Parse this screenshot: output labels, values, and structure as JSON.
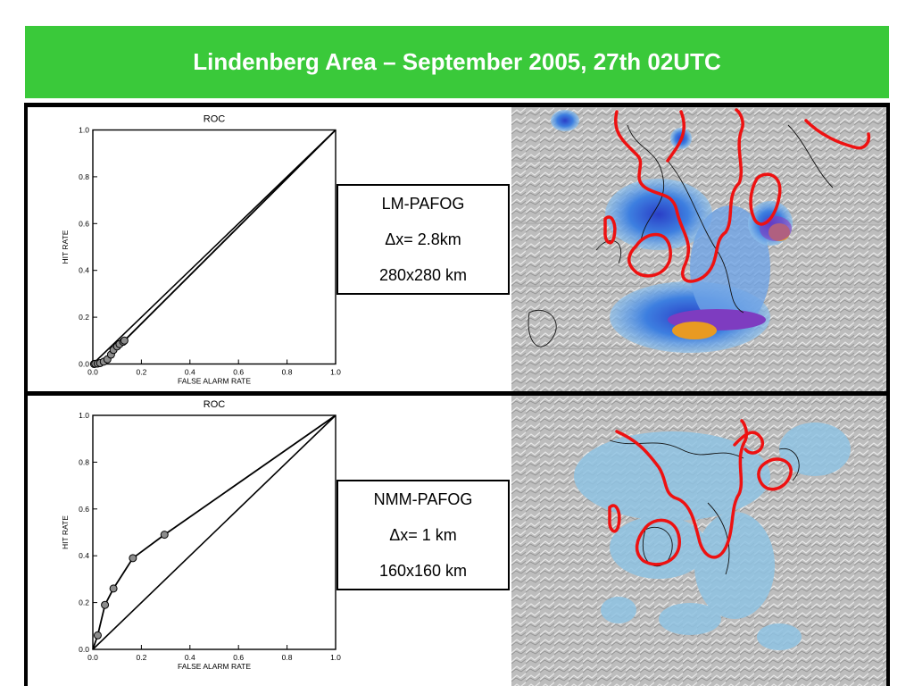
{
  "title": "Lindenberg Area – September 2005, 27th 02UTC",
  "colors": {
    "title_bg": "#3ac93a",
    "fog_red": "#ee1111",
    "model_blue": "#2f6fd8"
  },
  "panels": [
    {
      "label_lines": [
        "LM-PAFOG",
        "Δx= 2.8km",
        "280x280 km"
      ]
    },
    {
      "label_lines": [
        "NMM-PAFOG",
        "Δx= 1 km",
        "160x160 km"
      ]
    }
  ],
  "chart_data": [
    {
      "type": "line",
      "title": "ROC",
      "xlabel": "FALSE ALARM RATE",
      "ylabel": "HIT RATE",
      "xlim": [
        0,
        1
      ],
      "ylim": [
        0,
        1
      ],
      "xticks": [
        "0.0",
        "0.2",
        "0.4",
        "0.6",
        "0.8",
        "1.0"
      ],
      "yticks": [
        "0.0",
        "0.2",
        "0.4",
        "0.6",
        "0.8",
        "1.0"
      ],
      "grid": false,
      "series": [
        {
          "x": [
            0.0,
            0.005,
            0.01,
            0.02,
            0.03,
            0.045,
            0.06,
            0.075,
            0.085,
            0.1,
            0.11,
            0.125,
            0.13,
            1.0
          ],
          "y": [
            0.0,
            0.0,
            0.001,
            0.002,
            0.004,
            0.01,
            0.02,
            0.04,
            0.06,
            0.075,
            0.085,
            0.095,
            0.1,
            1.0
          ]
        }
      ]
    },
    {
      "type": "line",
      "title": "ROC",
      "xlabel": "FALSE ALARM RATE",
      "ylabel": "HIT RATE",
      "xlim": [
        0,
        1
      ],
      "ylim": [
        0,
        1
      ],
      "xticks": [
        "0.0",
        "0.2",
        "0.4",
        "0.6",
        "0.8",
        "1.0"
      ],
      "yticks": [
        "0.0",
        "0.2",
        "0.4",
        "0.6",
        "0.8",
        "1.0"
      ],
      "grid": false,
      "series": [
        {
          "x": [
            0.0,
            0.02,
            0.05,
            0.085,
            0.165,
            0.295,
            1.0
          ],
          "y": [
            0.0,
            0.06,
            0.19,
            0.26,
            0.39,
            0.49,
            1.0
          ]
        }
      ]
    }
  ]
}
